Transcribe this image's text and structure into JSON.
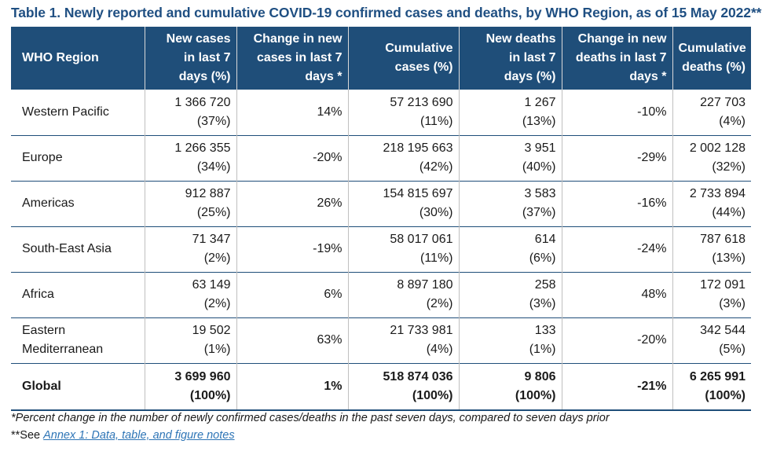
{
  "title": "Table 1. Newly reported and cumulative COVID-19 confirmed cases and deaths, by WHO Region, as of 15 May 2022**",
  "headers": {
    "region": "WHO Region",
    "new_cases": [
      "New cases",
      "in last 7",
      "days (%)"
    ],
    "change_cases": [
      "Change in new",
      "cases in last 7",
      "days *"
    ],
    "cum_cases": [
      "Cumulative",
      "cases (%)"
    ],
    "new_deaths": [
      "New deaths",
      "in last 7",
      "days (%)"
    ],
    "change_deaths": [
      "Change in new",
      "deaths in last 7",
      "days *"
    ],
    "cum_deaths": [
      "Cumulative",
      "deaths (%)"
    ]
  },
  "rows": [
    {
      "region": [
        "Western Pacific"
      ],
      "new_cases": [
        "1 366 720",
        "(37%)"
      ],
      "change_cases": "14%",
      "cum_cases": [
        "57 213 690",
        "(11%)"
      ],
      "new_deaths": [
        "1 267",
        "(13%)"
      ],
      "change_deaths": "-10%",
      "cum_deaths": [
        "227 703",
        "(4%)"
      ]
    },
    {
      "region": [
        "Europe"
      ],
      "new_cases": [
        "1 266 355",
        "(34%)"
      ],
      "change_cases": "-20%",
      "cum_cases": [
        "218 195 663",
        "(42%)"
      ],
      "new_deaths": [
        "3 951",
        "(40%)"
      ],
      "change_deaths": "-29%",
      "cum_deaths": [
        "2 002 128",
        "(32%)"
      ]
    },
    {
      "region": [
        "Americas"
      ],
      "new_cases": [
        "912 887",
        "(25%)"
      ],
      "change_cases": "26%",
      "cum_cases": [
        "154 815 697",
        "(30%)"
      ],
      "new_deaths": [
        "3 583",
        "(37%)"
      ],
      "change_deaths": "-16%",
      "cum_deaths": [
        "2 733 894",
        "(44%)"
      ]
    },
    {
      "region": [
        "South-East Asia"
      ],
      "new_cases": [
        "71 347",
        "(2%)"
      ],
      "change_cases": "-19%",
      "cum_cases": [
        "58 017 061",
        "(11%)"
      ],
      "new_deaths": [
        "614",
        "(6%)"
      ],
      "change_deaths": "-24%",
      "cum_deaths": [
        "787 618",
        "(13%)"
      ]
    },
    {
      "region": [
        "Africa"
      ],
      "new_cases": [
        "63 149",
        "(2%)"
      ],
      "change_cases": "6%",
      "cum_cases": [
        "8 897 180",
        "(2%)"
      ],
      "new_deaths": [
        "258",
        "(3%)"
      ],
      "change_deaths": "48%",
      "cum_deaths": [
        "172 091",
        "(3%)"
      ]
    },
    {
      "region": [
        "Eastern",
        "Mediterranean"
      ],
      "new_cases": [
        "19 502",
        "(1%)"
      ],
      "change_cases": "63%",
      "cum_cases": [
        "21 733 981",
        "(4%)"
      ],
      "new_deaths": [
        "133",
        "(1%)"
      ],
      "change_deaths": "-20%",
      "cum_deaths": [
        "342 544",
        "(5%)"
      ]
    }
  ],
  "global": {
    "region": [
      "Global"
    ],
    "new_cases": [
      "3 699 960",
      "(100%)"
    ],
    "change_cases": "1%",
    "cum_cases": [
      "518 874 036",
      "(100%)"
    ],
    "new_deaths": [
      "9 806",
      "(100%)"
    ],
    "change_deaths": "-21%",
    "cum_deaths": [
      "6 265 991",
      "(100%)"
    ]
  },
  "footnote1": "*Percent change in the number of newly confirmed cases/deaths in the past seven days, compared to seven days prior",
  "footnote2_prefix": "**See ",
  "footnote2_link": "Annex 1: Data, table, and figure notes"
}
